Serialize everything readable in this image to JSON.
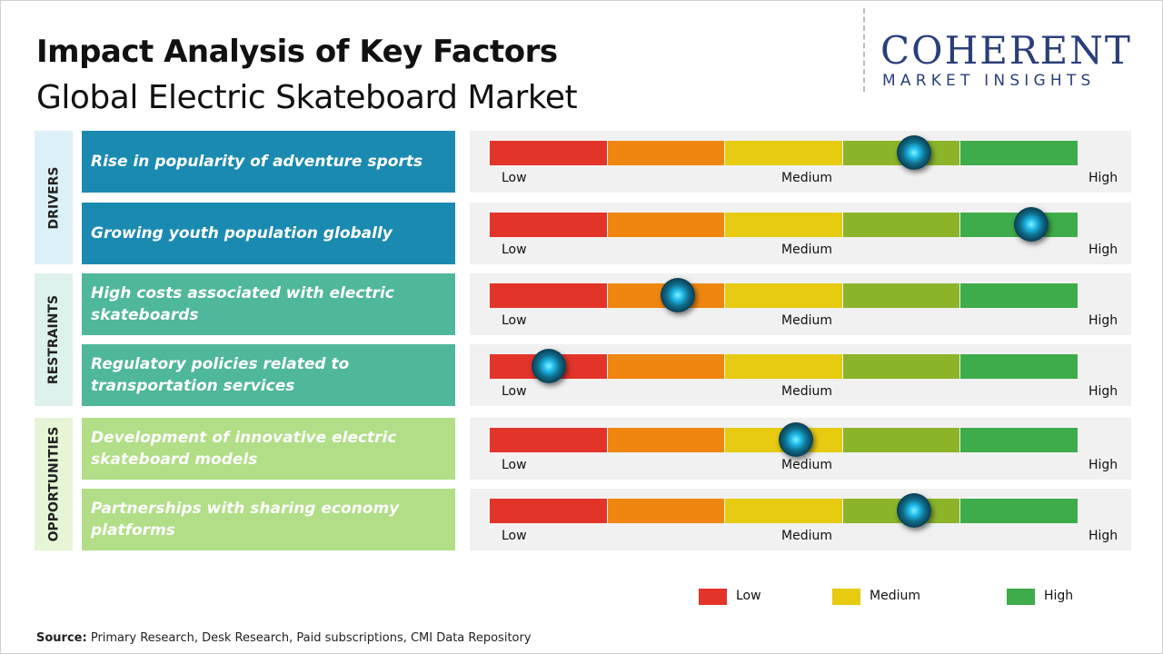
{
  "header": {
    "title": "Impact Analysis of Key Factors",
    "subtitle": "Global Electric Skateboard Market"
  },
  "logo": {
    "name": "COHERENT",
    "tagline": "MARKET INSIGHTS"
  },
  "scale": {
    "range": [
      0,
      5
    ],
    "low": "Low",
    "medium": "Medium",
    "high": "High",
    "colors": [
      "#e3342a",
      "#ef860f",
      "#e6cb10",
      "#8bb42b",
      "#3eac4a"
    ]
  },
  "groups": [
    {
      "label": "DRIVERS",
      "background": "#dcf0f8",
      "color": "#1a8ab0",
      "factors": [
        {
          "text": "Rise in popularity of adventure sports",
          "impact": 3.6
        },
        {
          "text": "Growing youth population globally",
          "impact": 4.6
        }
      ]
    },
    {
      "label": "RESTRAINTS",
      "background": "#ddf2ec",
      "color": "#4fb79a",
      "factors": [
        {
          "text": "High costs associated with electric skateboards",
          "impact": 1.6
        },
        {
          "text": "Regulatory policies related to transportation services",
          "impact": 0.5
        }
      ]
    },
    {
      "label": "OPPORTUNITIES",
      "background": "#e5f5d6",
      "color": "#b1de86",
      "factors": [
        {
          "text": "Development of innovative electric skateboard models",
          "impact": 2.6
        },
        {
          "text": "Partnerships with sharing economy platforms",
          "impact": 3.6
        }
      ]
    }
  ],
  "legend": [
    {
      "label": "Low",
      "color": "#e3342a"
    },
    {
      "label": "Medium",
      "color": "#e6cb10"
    },
    {
      "label": "High",
      "color": "#3eac4a"
    }
  ],
  "source": {
    "label": "Source:",
    "text": "Primary Research, Desk Research, Paid subscriptions, CMI Data Repository"
  }
}
